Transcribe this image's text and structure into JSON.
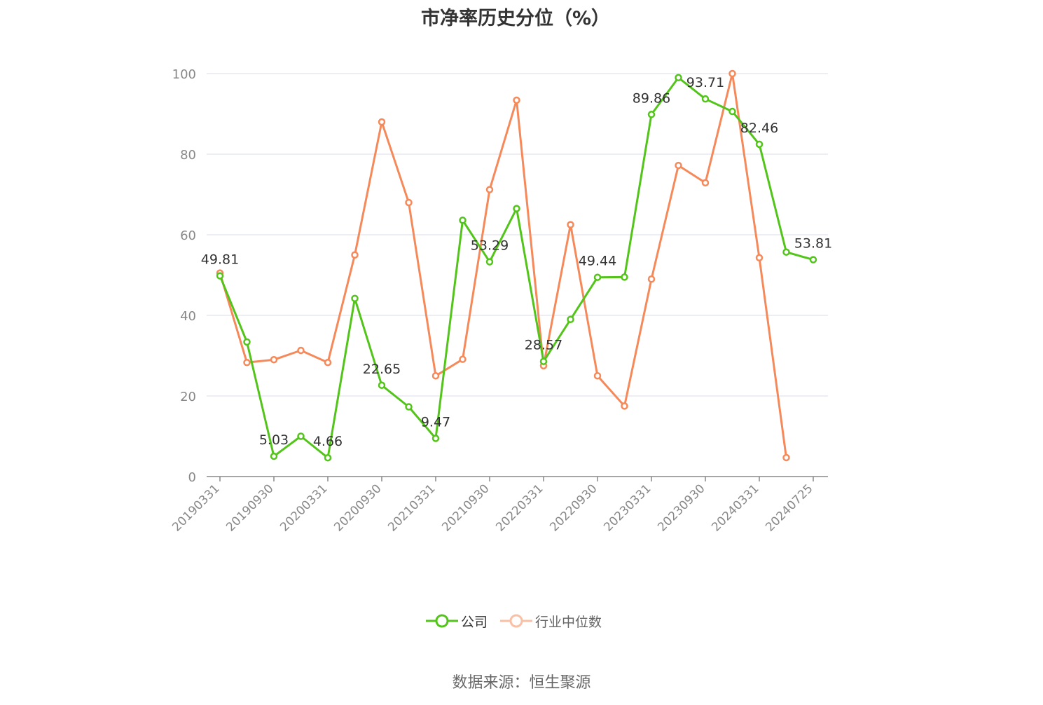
{
  "title": "市净率历史分位（%）",
  "source": "数据来源：恒生聚源",
  "colors": {
    "company": "#52c41a",
    "industry": "#f5895a",
    "grid": "#e5e8f0",
    "axis": "#888888"
  },
  "legend": {
    "company": "公司",
    "industry": "行业中位数"
  },
  "chart_data": {
    "type": "line",
    "title": "市净率历史分位（%）",
    "xlabel": "",
    "ylabel": "",
    "ylim": [
      0,
      100
    ],
    "yticks": [
      0,
      20,
      40,
      60,
      80,
      100
    ],
    "grid": true,
    "legend_position": "bottom-center",
    "x": [
      "20190331",
      "20190630",
      "20190930",
      "20191231",
      "20200331",
      "20200630",
      "20200930",
      "20201231",
      "20210331",
      "20210630",
      "20210930",
      "20211231",
      "20220331",
      "20220630",
      "20220930",
      "20221231",
      "20230331",
      "20230630",
      "20230930",
      "20231231",
      "20240331",
      "20240630",
      "20240725"
    ],
    "x_tick_labels": [
      "20190331",
      "20190930",
      "20200331",
      "20200930",
      "20210331",
      "20210930",
      "20220331",
      "20220930",
      "20230331",
      "20230930",
      "20240331",
      "20240725"
    ],
    "series": [
      {
        "name": "公司",
        "color": "#52c41a",
        "values": [
          49.81,
          33.4,
          5.03,
          10.0,
          4.66,
          44.2,
          22.65,
          17.3,
          9.47,
          63.6,
          53.29,
          66.5,
          28.57,
          39.0,
          49.44,
          49.5,
          89.86,
          99.0,
          93.71,
          90.6,
          82.46,
          55.7,
          53.81
        ]
      },
      {
        "name": "行业中位数",
        "color": "#f5895a",
        "values": [
          50.5,
          28.3,
          29.0,
          31.3,
          28.3,
          55.0,
          88.0,
          68.0,
          25.0,
          29.1,
          71.2,
          93.4,
          27.5,
          62.5,
          25.0,
          17.5,
          49.0,
          77.2,
          72.9,
          100.0,
          54.3,
          4.7,
          null
        ]
      }
    ],
    "data_labels": [
      {
        "series": 0,
        "index": 0,
        "text": "49.81"
      },
      {
        "series": 0,
        "index": 2,
        "text": "5.03"
      },
      {
        "series": 0,
        "index": 4,
        "text": "4.66"
      },
      {
        "series": 0,
        "index": 6,
        "text": "22.65"
      },
      {
        "series": 0,
        "index": 8,
        "text": "9.47"
      },
      {
        "series": 0,
        "index": 10,
        "text": "53.29"
      },
      {
        "series": 0,
        "index": 12,
        "text": "28.57"
      },
      {
        "series": 0,
        "index": 14,
        "text": "49.44"
      },
      {
        "series": 0,
        "index": 16,
        "text": "89.86"
      },
      {
        "series": 0,
        "index": 18,
        "text": "93.71"
      },
      {
        "series": 0,
        "index": 20,
        "text": "82.46"
      },
      {
        "series": 0,
        "index": 22,
        "text": "53.81"
      }
    ]
  }
}
